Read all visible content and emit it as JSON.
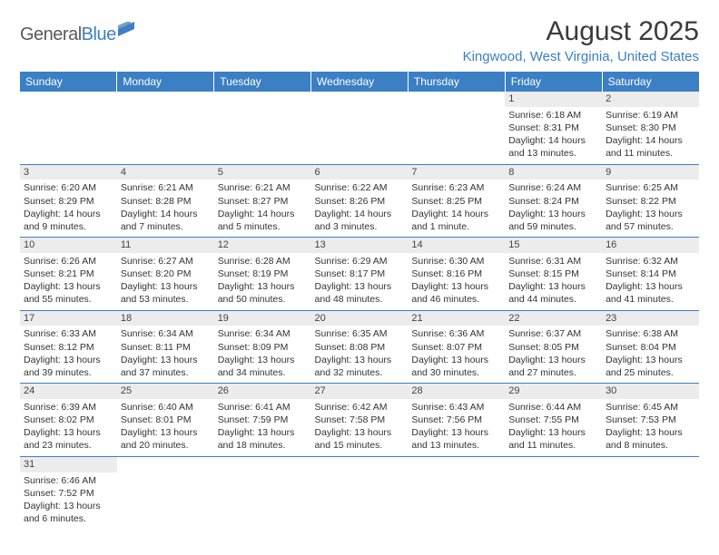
{
  "logo": {
    "part1": "General",
    "part2": "Blue"
  },
  "title": "August 2025",
  "location": "Kingwood, West Virginia, United States",
  "colors": {
    "header_bg": "#3b7fc4",
    "header_fg": "#ffffff",
    "daynum_bg": "#ececec",
    "rule": "#3b7fc4",
    "logo_gray": "#5a5a5a",
    "logo_blue": "#3b7fc4"
  },
  "day_headers": [
    "Sunday",
    "Monday",
    "Tuesday",
    "Wednesday",
    "Thursday",
    "Friday",
    "Saturday"
  ],
  "weeks": [
    [
      {
        "n": "",
        "lines": []
      },
      {
        "n": "",
        "lines": []
      },
      {
        "n": "",
        "lines": []
      },
      {
        "n": "",
        "lines": []
      },
      {
        "n": "",
        "lines": []
      },
      {
        "n": "1",
        "lines": [
          "Sunrise: 6:18 AM",
          "Sunset: 8:31 PM",
          "Daylight: 14 hours",
          "and 13 minutes."
        ]
      },
      {
        "n": "2",
        "lines": [
          "Sunrise: 6:19 AM",
          "Sunset: 8:30 PM",
          "Daylight: 14 hours",
          "and 11 minutes."
        ]
      }
    ],
    [
      {
        "n": "3",
        "lines": [
          "Sunrise: 6:20 AM",
          "Sunset: 8:29 PM",
          "Daylight: 14 hours",
          "and 9 minutes."
        ]
      },
      {
        "n": "4",
        "lines": [
          "Sunrise: 6:21 AM",
          "Sunset: 8:28 PM",
          "Daylight: 14 hours",
          "and 7 minutes."
        ]
      },
      {
        "n": "5",
        "lines": [
          "Sunrise: 6:21 AM",
          "Sunset: 8:27 PM",
          "Daylight: 14 hours",
          "and 5 minutes."
        ]
      },
      {
        "n": "6",
        "lines": [
          "Sunrise: 6:22 AM",
          "Sunset: 8:26 PM",
          "Daylight: 14 hours",
          "and 3 minutes."
        ]
      },
      {
        "n": "7",
        "lines": [
          "Sunrise: 6:23 AM",
          "Sunset: 8:25 PM",
          "Daylight: 14 hours",
          "and 1 minute."
        ]
      },
      {
        "n": "8",
        "lines": [
          "Sunrise: 6:24 AM",
          "Sunset: 8:24 PM",
          "Daylight: 13 hours",
          "and 59 minutes."
        ]
      },
      {
        "n": "9",
        "lines": [
          "Sunrise: 6:25 AM",
          "Sunset: 8:22 PM",
          "Daylight: 13 hours",
          "and 57 minutes."
        ]
      }
    ],
    [
      {
        "n": "10",
        "lines": [
          "Sunrise: 6:26 AM",
          "Sunset: 8:21 PM",
          "Daylight: 13 hours",
          "and 55 minutes."
        ]
      },
      {
        "n": "11",
        "lines": [
          "Sunrise: 6:27 AM",
          "Sunset: 8:20 PM",
          "Daylight: 13 hours",
          "and 53 minutes."
        ]
      },
      {
        "n": "12",
        "lines": [
          "Sunrise: 6:28 AM",
          "Sunset: 8:19 PM",
          "Daylight: 13 hours",
          "and 50 minutes."
        ]
      },
      {
        "n": "13",
        "lines": [
          "Sunrise: 6:29 AM",
          "Sunset: 8:17 PM",
          "Daylight: 13 hours",
          "and 48 minutes."
        ]
      },
      {
        "n": "14",
        "lines": [
          "Sunrise: 6:30 AM",
          "Sunset: 8:16 PM",
          "Daylight: 13 hours",
          "and 46 minutes."
        ]
      },
      {
        "n": "15",
        "lines": [
          "Sunrise: 6:31 AM",
          "Sunset: 8:15 PM",
          "Daylight: 13 hours",
          "and 44 minutes."
        ]
      },
      {
        "n": "16",
        "lines": [
          "Sunrise: 6:32 AM",
          "Sunset: 8:14 PM",
          "Daylight: 13 hours",
          "and 41 minutes."
        ]
      }
    ],
    [
      {
        "n": "17",
        "lines": [
          "Sunrise: 6:33 AM",
          "Sunset: 8:12 PM",
          "Daylight: 13 hours",
          "and 39 minutes."
        ]
      },
      {
        "n": "18",
        "lines": [
          "Sunrise: 6:34 AM",
          "Sunset: 8:11 PM",
          "Daylight: 13 hours",
          "and 37 minutes."
        ]
      },
      {
        "n": "19",
        "lines": [
          "Sunrise: 6:34 AM",
          "Sunset: 8:09 PM",
          "Daylight: 13 hours",
          "and 34 minutes."
        ]
      },
      {
        "n": "20",
        "lines": [
          "Sunrise: 6:35 AM",
          "Sunset: 8:08 PM",
          "Daylight: 13 hours",
          "and 32 minutes."
        ]
      },
      {
        "n": "21",
        "lines": [
          "Sunrise: 6:36 AM",
          "Sunset: 8:07 PM",
          "Daylight: 13 hours",
          "and 30 minutes."
        ]
      },
      {
        "n": "22",
        "lines": [
          "Sunrise: 6:37 AM",
          "Sunset: 8:05 PM",
          "Daylight: 13 hours",
          "and 27 minutes."
        ]
      },
      {
        "n": "23",
        "lines": [
          "Sunrise: 6:38 AM",
          "Sunset: 8:04 PM",
          "Daylight: 13 hours",
          "and 25 minutes."
        ]
      }
    ],
    [
      {
        "n": "24",
        "lines": [
          "Sunrise: 6:39 AM",
          "Sunset: 8:02 PM",
          "Daylight: 13 hours",
          "and 23 minutes."
        ]
      },
      {
        "n": "25",
        "lines": [
          "Sunrise: 6:40 AM",
          "Sunset: 8:01 PM",
          "Daylight: 13 hours",
          "and 20 minutes."
        ]
      },
      {
        "n": "26",
        "lines": [
          "Sunrise: 6:41 AM",
          "Sunset: 7:59 PM",
          "Daylight: 13 hours",
          "and 18 minutes."
        ]
      },
      {
        "n": "27",
        "lines": [
          "Sunrise: 6:42 AM",
          "Sunset: 7:58 PM",
          "Daylight: 13 hours",
          "and 15 minutes."
        ]
      },
      {
        "n": "28",
        "lines": [
          "Sunrise: 6:43 AM",
          "Sunset: 7:56 PM",
          "Daylight: 13 hours",
          "and 13 minutes."
        ]
      },
      {
        "n": "29",
        "lines": [
          "Sunrise: 6:44 AM",
          "Sunset: 7:55 PM",
          "Daylight: 13 hours",
          "and 11 minutes."
        ]
      },
      {
        "n": "30",
        "lines": [
          "Sunrise: 6:45 AM",
          "Sunset: 7:53 PM",
          "Daylight: 13 hours",
          "and 8 minutes."
        ]
      }
    ],
    [
      {
        "n": "31",
        "lines": [
          "Sunrise: 6:46 AM",
          "Sunset: 7:52 PM",
          "Daylight: 13 hours",
          "and 6 minutes."
        ]
      },
      {
        "n": "",
        "lines": []
      },
      {
        "n": "",
        "lines": []
      },
      {
        "n": "",
        "lines": []
      },
      {
        "n": "",
        "lines": []
      },
      {
        "n": "",
        "lines": []
      },
      {
        "n": "",
        "lines": []
      }
    ]
  ]
}
